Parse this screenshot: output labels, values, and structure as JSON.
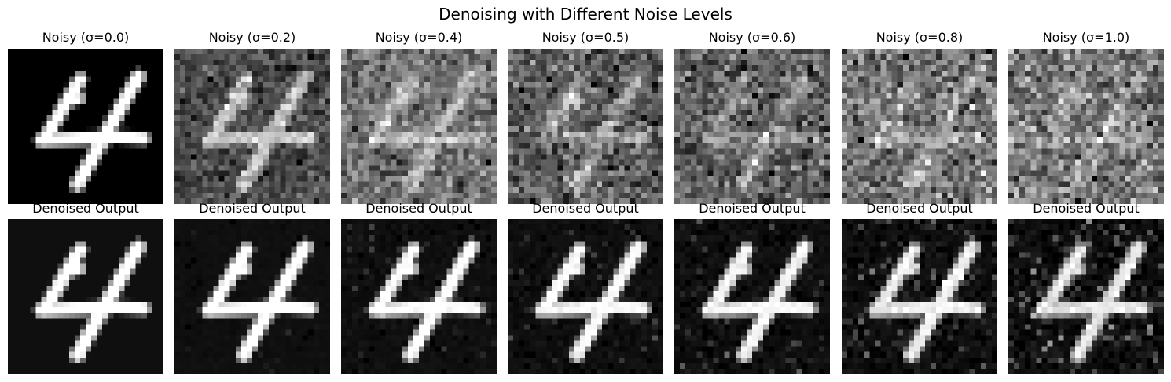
{
  "figure": {
    "title": "Denoising with Different Noise Levels"
  },
  "noisy_row": {
    "titles": [
      "Noisy (σ=0.0)",
      "Noisy (σ=0.2)",
      "Noisy (σ=0.4)",
      "Noisy (σ=0.5)",
      "Noisy (σ=0.6)",
      "Noisy (σ=0.8)",
      "Noisy (σ=1.0)"
    ],
    "noise_levels": [
      0.0,
      0.2,
      0.4,
      0.5,
      0.6,
      0.8,
      1.0
    ]
  },
  "denoised_row": {
    "titles": [
      "Denoised Output",
      "Denoised Output",
      "Denoised Output",
      "Denoised Output",
      "Denoised Output",
      "Denoised Output",
      "Denoised Output"
    ]
  },
  "image": {
    "content": "handwritten digit 4",
    "colormap": "grayscale"
  }
}
